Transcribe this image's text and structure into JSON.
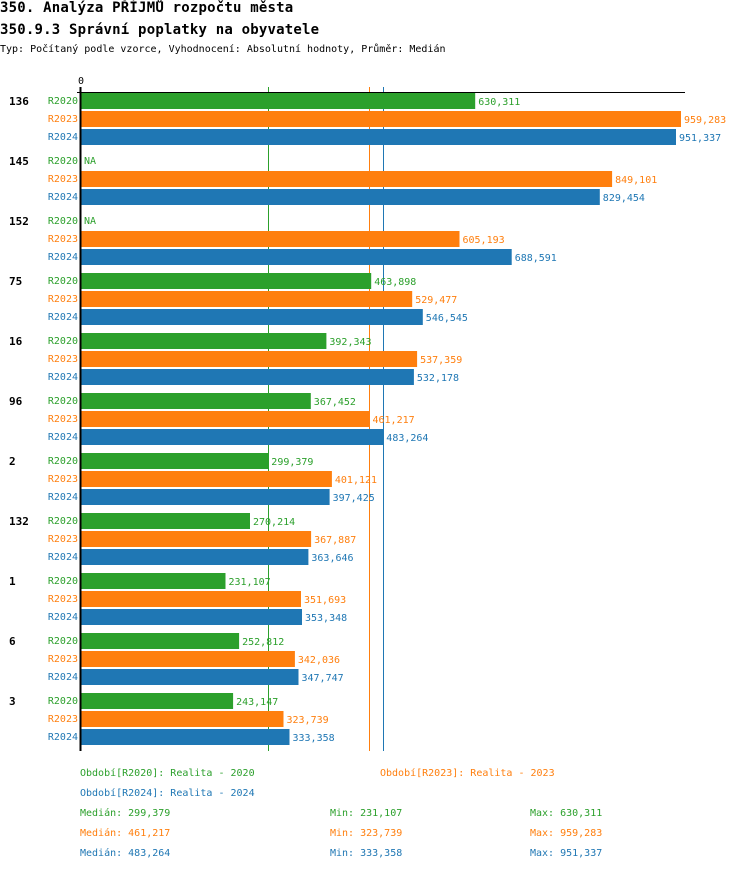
{
  "header": {
    "title": "350. Analýza PŘÍJMŮ rozpočtu města",
    "subtitle": "350.9.3 Správní poplatky na obyvatele",
    "info": "Typ: Počítaný podle vzorce, Vyhodnocení: Absolutní hodnoty, Průměr: Medián"
  },
  "colors": {
    "R2020": "#2ca02c",
    "R2023": "#ff7f0e",
    "R2024": "#1f77b4"
  },
  "chart_data": {
    "type": "bar",
    "orientation": "horizontal",
    "title": "350.9.3 Správní poplatky na obyvatele",
    "xlabel": "",
    "ylabel": "",
    "x_tick_labels": [
      "0"
    ],
    "xlim": [
      0,
      959283
    ],
    "grid": false,
    "categories": [
      "136",
      "145",
      "152",
      "75",
      "16",
      "96",
      "2",
      "132",
      "1",
      "6",
      "3"
    ],
    "series": [
      {
        "name": "R2020",
        "values": [
          630311,
          null,
          null,
          463898,
          392343,
          367452,
          299379,
          270214,
          231107,
          252812,
          243147
        ],
        "labels": [
          "630,311",
          "NA",
          "NA",
          "463,898",
          "392,343",
          "367,452",
          "299,379",
          "270,214",
          "231,107",
          "252,812",
          "243,147"
        ]
      },
      {
        "name": "R2023",
        "values": [
          959283,
          849101,
          605193,
          529477,
          537359,
          461217,
          401121,
          367887,
          351693,
          342036,
          323739
        ],
        "labels": [
          "959,283",
          "849,101",
          "605,193",
          "529,477",
          "537,359",
          "461,217",
          "401,121",
          "367,887",
          "351,693",
          "342,036",
          "323,739"
        ]
      },
      {
        "name": "R2024",
        "values": [
          951337,
          829454,
          688591,
          546545,
          532178,
          483264,
          397425,
          363646,
          353348,
          347747,
          333358
        ],
        "labels": [
          "951,337",
          "829,454",
          "688,591",
          "546,545",
          "532,178",
          "483,264",
          "397,425",
          "363,646",
          "353,348",
          "347,747",
          "333,358"
        ]
      }
    ],
    "median_lines": [
      {
        "series": "R2020",
        "value": 299379
      },
      {
        "series": "R2023",
        "value": 461217
      },
      {
        "series": "R2024",
        "value": 483264
      }
    ]
  },
  "legend": {
    "periods": [
      {
        "series": "R2020",
        "text": "Období[R2020]: Realita - 2020"
      },
      {
        "series": "R2023",
        "text": "Období[R2023]: Realita - 2023"
      },
      {
        "series": "R2024",
        "text": "Období[R2024]: Realita - 2024"
      }
    ],
    "stats": [
      {
        "series": "R2020",
        "median": "Medián: 299,379",
        "min": "Min: 231,107",
        "max": "Max: 630,311"
      },
      {
        "series": "R2023",
        "median": "Medián: 461,217",
        "min": "Min: 323,739",
        "max": "Max: 959,283"
      },
      {
        "series": "R2024",
        "median": "Medián: 483,264",
        "min": "Min: 333,358",
        "max": "Max: 951,337"
      }
    ]
  }
}
